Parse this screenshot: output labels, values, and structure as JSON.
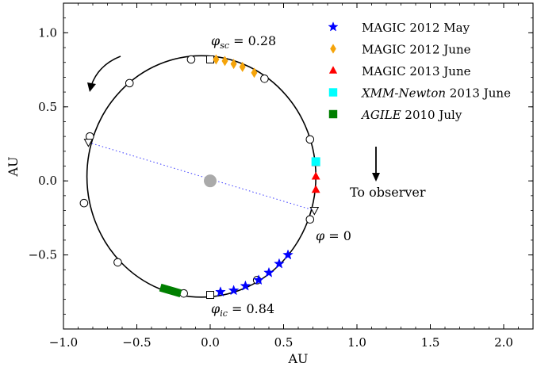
{
  "chart_data": {
    "type": "scatter",
    "title": "",
    "xlabel": "AU",
    "ylabel": "AU",
    "xlim": [
      -1.0,
      2.2
    ],
    "ylim": [
      -1.0,
      1.2
    ],
    "xticks": [
      -1.0,
      -0.5,
      0.0,
      0.5,
      1.0,
      1.5,
      2.0
    ],
    "xtick_labels": [
      "−1.0",
      "−0.5",
      "0.0",
      "0.5",
      "1.0",
      "1.5",
      "2.0"
    ],
    "yticks": [
      -0.5,
      0.0,
      0.5,
      1.0
    ],
    "ytick_labels": [
      "−0.5",
      "0.0",
      "0.5",
      "1.0"
    ],
    "grid": false,
    "legend_position": "top-right",
    "orbit": {
      "focus": [
        0.0,
        0.0
      ],
      "focus_color": "#aaaaaa",
      "major_axis_endpoints": [
        [
          -0.83,
          0.26
        ],
        [
          0.71,
          -0.2
        ]
      ],
      "open_circles": [
        [
          -0.13,
          0.82
        ],
        [
          0.37,
          0.69
        ],
        [
          0.68,
          0.28
        ],
        [
          0.68,
          -0.26
        ],
        [
          -0.55,
          0.66
        ],
        [
          -0.82,
          0.3
        ],
        [
          -0.86,
          -0.15
        ],
        [
          -0.63,
          -0.55
        ],
        [
          -0.18,
          -0.76
        ],
        [
          0.32,
          -0.67
        ]
      ],
      "open_squares": [
        [
          0.0,
          0.82
        ],
        [
          0.0,
          -0.77
        ]
      ],
      "open_triangles": [
        [
          -0.83,
          0.26
        ],
        [
          0.71,
          -0.2
        ]
      ]
    },
    "series": [
      {
        "name": "MAGIC 2012 May",
        "marker": "star",
        "color": "#0000ff",
        "x": [
          0.07,
          0.16,
          0.24,
          0.33,
          0.4,
          0.47,
          0.53
        ],
        "y": [
          -0.75,
          -0.74,
          -0.71,
          -0.67,
          -0.62,
          -0.56,
          -0.5
        ]
      },
      {
        "name": "MAGIC 2012 June",
        "marker": "diamond",
        "color": "#f5a40a",
        "x": [
          0.04,
          0.1,
          0.16,
          0.22,
          0.3
        ],
        "y": [
          0.82,
          0.81,
          0.79,
          0.77,
          0.73
        ]
      },
      {
        "name": "MAGIC 2013 June",
        "marker": "triangle",
        "color": "#ff0000",
        "x": [
          0.72,
          0.72,
          0.72
        ],
        "y": [
          0.12,
          0.03,
          -0.06
        ]
      },
      {
        "name_italic": "XMM-Newton",
        "name_rest": " 2013 June",
        "marker": "square",
        "color": "#00ffff",
        "x": [
          0.72
        ],
        "y": [
          0.13
        ]
      },
      {
        "name_italic": "AGILE",
        "name_rest": " 2010 July",
        "marker": "square",
        "color": "#007f00",
        "x": [
          -0.34,
          -0.27,
          -0.2
        ],
        "y": [
          -0.72,
          -0.74,
          -0.76
        ]
      }
    ],
    "annotations": {
      "phi_sc_value": " = 0.28",
      "phi_ic_value": " = 0.84",
      "phi_zero": " = 0",
      "to_observer": "To observer"
    }
  }
}
